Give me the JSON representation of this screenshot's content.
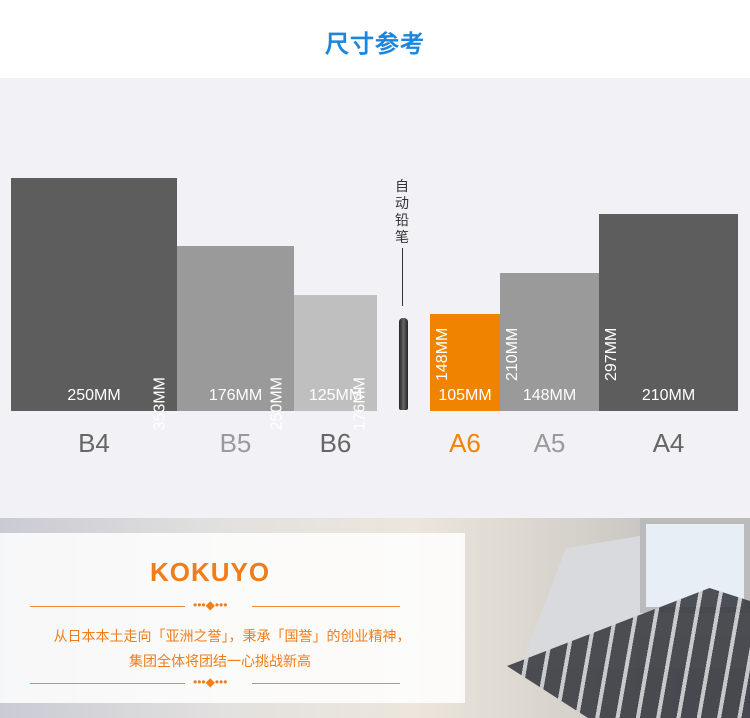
{
  "title": "尺寸参考",
  "pencil_label": "自动铅笔",
  "sizes": [
    {
      "name": "B4",
      "width": "250MM",
      "height": "353MM",
      "color": "#5d5d5d",
      "label_color": "#666666"
    },
    {
      "name": "B5",
      "width": "176MM",
      "height": "250MM",
      "color": "#9a9a9a",
      "label_color": "#9a9a9a"
    },
    {
      "name": "B6",
      "width": "125MM",
      "height": "176MM",
      "color": "#bfbfbf",
      "label_color": "#666666"
    },
    {
      "name": "A6",
      "width": "105MM",
      "height": "148MM",
      "color": "#f08300",
      "label_color": "#f08300"
    },
    {
      "name": "A5",
      "width": "148MM",
      "height": "210MM",
      "color": "#9a9a9a",
      "label_color": "#9a9a9a"
    },
    {
      "name": "A4",
      "width": "210MM",
      "height": "297MM",
      "color": "#5d5d5d",
      "label_color": "#666666"
    }
  ],
  "brand": {
    "logo": "KOKUYO",
    "ornament": "•••◆•••",
    "slogan_line1": "从日本本土走向「亚洲之誉」，秉承「国誉」的创业精神，",
    "slogan_line2": "集团全体将团结一心挑战新高"
  }
}
